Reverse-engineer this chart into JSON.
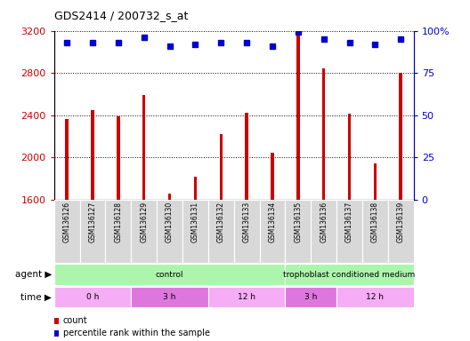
{
  "title": "GDS2414 / 200732_s_at",
  "samples": [
    "GSM136126",
    "GSM136127",
    "GSM136128",
    "GSM136129",
    "GSM136130",
    "GSM136131",
    "GSM136132",
    "GSM136133",
    "GSM136134",
    "GSM136135",
    "GSM136136",
    "GSM136137",
    "GSM136138",
    "GSM136139"
  ],
  "counts": [
    2360,
    2450,
    2390,
    2590,
    1660,
    1820,
    2220,
    2420,
    2040,
    3200,
    2840,
    2410,
    1940,
    2800
  ],
  "percentile_ranks": [
    93,
    93,
    93,
    96,
    91,
    92,
    93,
    93,
    91,
    99,
    95,
    93,
    92,
    95
  ],
  "bar_color": "#cc0000",
  "dot_color": "#0000cc",
  "ylim_left": [
    1600,
    3200
  ],
  "ylim_right": [
    0,
    100
  ],
  "yticks_left": [
    1600,
    2000,
    2400,
    2800,
    3200
  ],
  "yticks_right": [
    0,
    25,
    50,
    75,
    100
  ],
  "bar_width": 0.12,
  "dot_size": 4,
  "agent_groups": [
    {
      "label": "control",
      "start": 0,
      "end": 9,
      "color": "#adf5ad"
    },
    {
      "label": "trophoblast conditioned medium",
      "start": 9,
      "end": 14,
      "color": "#adf5ad"
    }
  ],
  "time_groups": [
    {
      "label": "0 h",
      "start": 0,
      "end": 3,
      "color": "#f5adf5"
    },
    {
      "label": "3 h",
      "start": 3,
      "end": 6,
      "color": "#dd77dd"
    },
    {
      "label": "12 h",
      "start": 6,
      "end": 9,
      "color": "#f5adf5"
    },
    {
      "label": "3 h",
      "start": 9,
      "end": 11,
      "color": "#dd77dd"
    },
    {
      "label": "12 h",
      "start": 11,
      "end": 14,
      "color": "#f5adf5"
    }
  ],
  "agent_label": "agent",
  "time_label": "time",
  "legend_count_label": "count",
  "legend_pct_label": "percentile rank within the sample",
  "tick_bg_color": "#d8d8d8",
  "grid_linestyle": "dotted",
  "grid_color": "black"
}
